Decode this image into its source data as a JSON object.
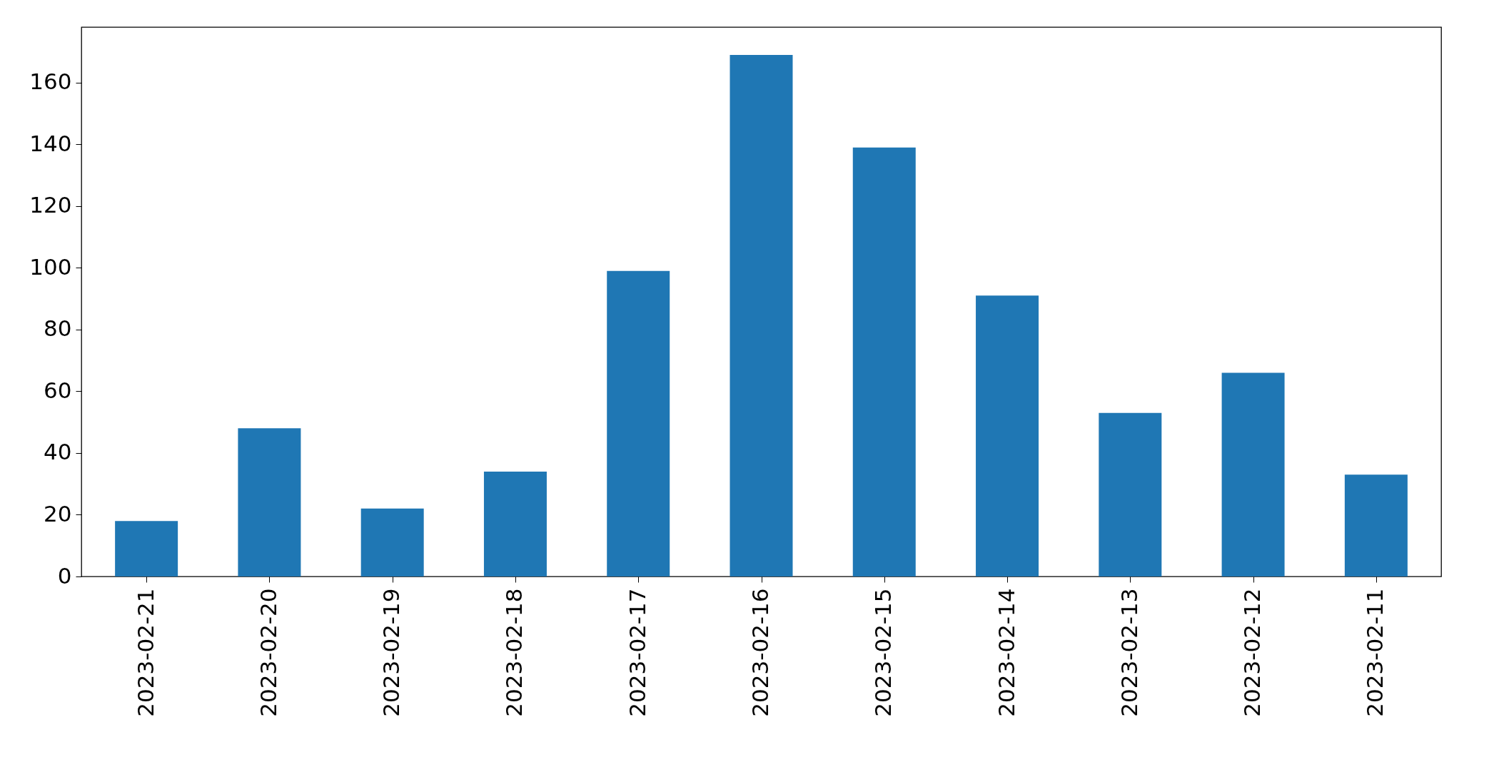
{
  "chart_data": {
    "type": "bar",
    "categories": [
      "2023-02-21",
      "2023-02-20",
      "2023-02-19",
      "2023-02-18",
      "2023-02-17",
      "2023-02-16",
      "2023-02-15",
      "2023-02-14",
      "2023-02-13",
      "2023-02-12",
      "2023-02-11"
    ],
    "values": [
      18,
      48,
      22,
      34,
      99,
      169,
      139,
      91,
      53,
      66,
      33
    ],
    "color": "#1f77b4",
    "ylim": [
      0,
      178
    ],
    "yticks": [
      0,
      20,
      40,
      60,
      80,
      100,
      120,
      140,
      160
    ],
    "grid": false
  }
}
